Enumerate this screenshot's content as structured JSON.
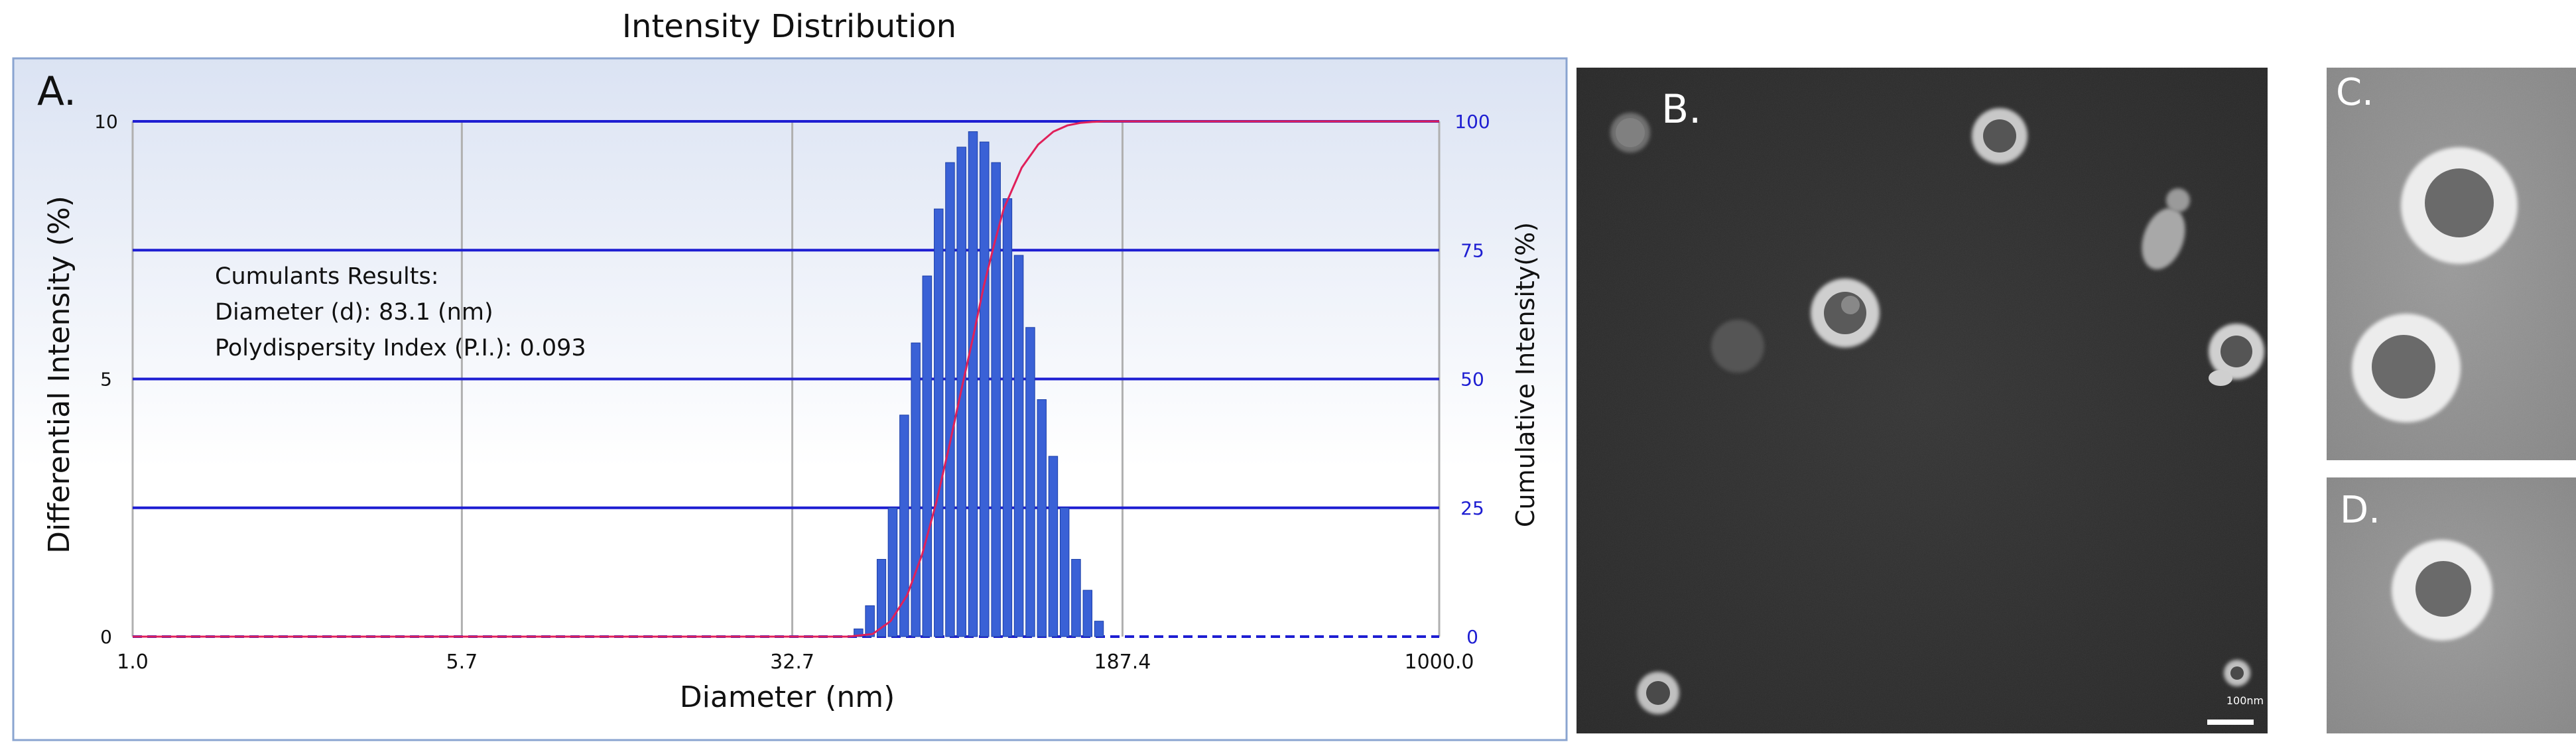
{
  "panel_a": {
    "panel_label": "A.",
    "chart_data": {
      "type": "bar",
      "title": "Intensity Distribution",
      "xlabel": "Diameter (nm)",
      "ylabel": "Differential Intensity (%)",
      "y2label": "Cumulative Intensity(%)",
      "x_scale": "log",
      "xlim": [
        1.0,
        1000.0
      ],
      "ylim": [
        0,
        10
      ],
      "y2lim": [
        0,
        100
      ],
      "x_ticks": [
        "1.0",
        "5.7",
        "32.7",
        "187.4",
        "1000.0"
      ],
      "y_ticks": [
        "0",
        "5",
        "10"
      ],
      "y2_ticks": [
        "0",
        "25",
        "50",
        "75",
        "100"
      ],
      "grid": true,
      "annotation": [
        "Cumulants Results:",
        "Diameter (d): 83.1 (nm)",
        "Polydispersity Index (P.I.): 0.093"
      ],
      "bars": {
        "name": "Differential Intensity",
        "color": "#3a61d6",
        "x": [
          46.4,
          49.3,
          52.4,
          55.6,
          59.1,
          62.8,
          66.7,
          70.9,
          75.3,
          80.0,
          85.0,
          90.3,
          96.0,
          102.0,
          108.3,
          115.1,
          122.3,
          129.9,
          138.0,
          146.6,
          155.8,
          165.5
        ],
        "values": [
          0.15,
          0.6,
          1.5,
          2.5,
          4.3,
          5.7,
          7.0,
          8.3,
          9.2,
          9.5,
          9.8,
          9.6,
          9.2,
          8.5,
          7.4,
          6.0,
          4.6,
          3.5,
          2.5,
          1.5,
          0.9,
          0.3
        ]
      },
      "cumulative": {
        "name": "Cumulative Intensity",
        "color": "#e0205a",
        "x": [
          1.0,
          44.0,
          50,
          55,
          60,
          65,
          70,
          75,
          80,
          85,
          90,
          95,
          100,
          110,
          120,
          130,
          140,
          150,
          160,
          170,
          187.4,
          1000.0
        ],
        "values": [
          0,
          0,
          0.5,
          3,
          8,
          16,
          26,
          37,
          48,
          58,
          68,
          76,
          83,
          91,
          95.5,
          98,
          99.2,
          99.7,
          99.9,
          100,
          100,
          100
        ]
      },
      "colors": {
        "grid_h": "#1e1ed2",
        "grid_v": "#b0b0b0",
        "right_axis": "#1e1ed2"
      }
    }
  },
  "panel_b": {
    "panel_label": "B.",
    "scale_bar_label": "100nm"
  },
  "panel_c": {
    "panel_label": "C."
  },
  "panel_d": {
    "panel_label": "D."
  }
}
